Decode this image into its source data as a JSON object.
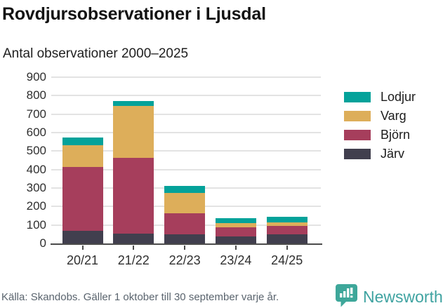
{
  "title": "Rovdjursobservationer i Ljusdal",
  "subtitle": "Antal observationer 2000–2025",
  "footer": {
    "source": "Källa: Skandobs. Gäller 1 oktober till 30 september varje år."
  },
  "branding": {
    "name": "Newsworthy",
    "icon": "speech-bubble-bar-chart",
    "color": "#3fa3a1"
  },
  "colors": {
    "grid": "#e3e3e3",
    "axis": "#4b4b4b",
    "title_text": "#131313",
    "tick_text": "#2f2f2f",
    "source_text": "#5a646e"
  },
  "chart_data": {
    "type": "bar",
    "stacked": true,
    "title": "Rovdjursobservationer i Ljusdal",
    "subtitle": "Antal observationer 2000–2025",
    "categories": [
      "20/21",
      "21/22",
      "22/23",
      "23/24",
      "24/25"
    ],
    "series": [
      {
        "name": "Lodjur",
        "color": "#04a29a",
        "values": [
          45,
          25,
          35,
          25,
          30
        ]
      },
      {
        "name": "Varg",
        "color": "#ddae5a",
        "values": [
          115,
          280,
          110,
          22,
          20
        ]
      },
      {
        "name": "Björn",
        "color": "#a63e5c",
        "values": [
          345,
          410,
          115,
          50,
          47
        ]
      },
      {
        "name": "Järv",
        "color": "#413f4e",
        "values": [
          70,
          55,
          50,
          38,
          48
        ]
      }
    ],
    "totals": [
      575,
      770,
      310,
      135,
      145
    ],
    "stack_order_bottom_to_top": [
      "Järv",
      "Björn",
      "Varg",
      "Lodjur"
    ],
    "xlabel": "",
    "ylabel": "",
    "ylim": [
      0,
      900
    ],
    "yticks": [
      0,
      100,
      200,
      300,
      400,
      500,
      600,
      700,
      800,
      900
    ],
    "grid": true,
    "legend_position": "right"
  }
}
